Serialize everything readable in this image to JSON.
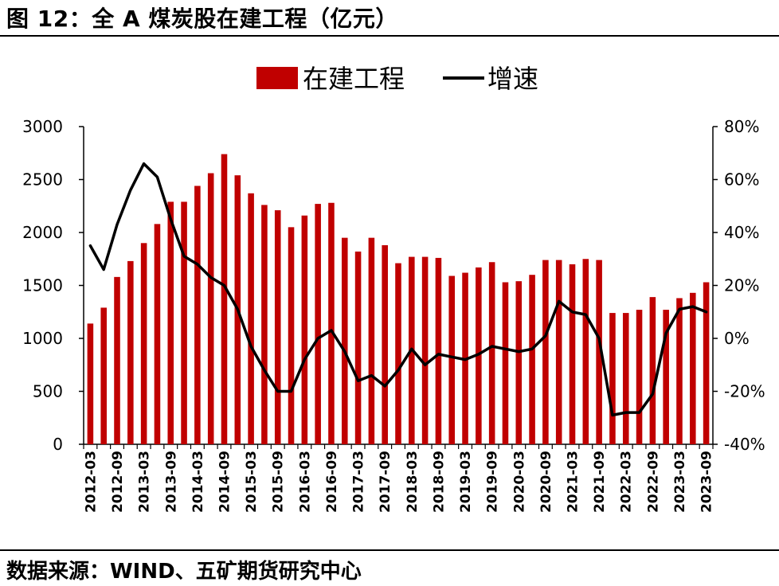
{
  "header": {
    "title": "图 12：全 A 煤炭股在建工程（亿元）"
  },
  "footer": {
    "source": "数据来源：WIND、五矿期货研究中心"
  },
  "colors": {
    "bar": "#c00000",
    "line": "#000000"
  },
  "chart_data": {
    "type": "bar+line",
    "legend_position": "top-center",
    "grid": false,
    "y_left": {
      "ylim": [
        0,
        3000
      ],
      "ticks": [
        "0",
        "500",
        "1000",
        "1500",
        "2000",
        "2500",
        "3000"
      ]
    },
    "y_right": {
      "ylim": [
        -40,
        80
      ],
      "ticks": [
        "-40%",
        "-20%",
        "0%",
        "20%",
        "40%",
        "60%",
        "80%"
      ]
    },
    "x_tick_labels": [
      "2012-03",
      "2012-09",
      "2013-03",
      "2013-09",
      "2014-03",
      "2014-09",
      "2015-03",
      "2015-09",
      "2016-03",
      "2016-09",
      "2017-03",
      "2017-09",
      "2018-03",
      "2018-09",
      "2019-03",
      "2019-09",
      "2020-03",
      "2020-09",
      "2021-03",
      "2021-09",
      "2022-03",
      "2022-09",
      "2023-03",
      "2023-09"
    ],
    "categories": [
      "2012-03",
      "2012-06",
      "2012-09",
      "2012-12",
      "2013-03",
      "2013-06",
      "2013-09",
      "2013-12",
      "2014-03",
      "2014-06",
      "2014-09",
      "2014-12",
      "2015-03",
      "2015-06",
      "2015-09",
      "2015-12",
      "2016-03",
      "2016-06",
      "2016-09",
      "2016-12",
      "2017-03",
      "2017-06",
      "2017-09",
      "2017-12",
      "2018-03",
      "2018-06",
      "2018-09",
      "2018-12",
      "2019-03",
      "2019-06",
      "2019-09",
      "2019-12",
      "2020-03",
      "2020-06",
      "2020-09",
      "2020-12",
      "2021-03",
      "2021-06",
      "2021-09",
      "2021-12",
      "2022-03",
      "2022-06",
      "2022-09",
      "2022-12",
      "2023-03",
      "2023-06",
      "2023-09"
    ],
    "series": [
      {
        "name": "在建工程",
        "type": "bar",
        "axis": "left",
        "values": [
          1140,
          1290,
          1580,
          1730,
          1900,
          2080,
          2290,
          2290,
          2440,
          2560,
          2740,
          2540,
          2370,
          2260,
          2210,
          2050,
          2160,
          2270,
          2280,
          1950,
          1820,
          1950,
          1880,
          1710,
          1770,
          1770,
          1760,
          1590,
          1620,
          1670,
          1720,
          1530,
          1540,
          1600,
          1740,
          1740,
          1700,
          1750,
          1740,
          1240,
          1240,
          1270,
          1390,
          1270,
          1380,
          1430,
          1530
        ]
      },
      {
        "name": "增速",
        "type": "line",
        "axis": "right",
        "values": [
          35,
          26,
          43,
          56,
          66,
          61,
          45,
          31,
          28,
          23,
          20,
          11,
          -3,
          -12,
          -20,
          -20,
          -8,
          0,
          3,
          -5,
          -16,
          -14,
          -18,
          -12,
          -4,
          -10,
          -6,
          -7,
          -8,
          -6,
          -3,
          -4,
          -5,
          -4,
          1,
          14,
          10,
          9,
          0,
          -29,
          -28,
          -28,
          -21,
          2,
          11,
          12,
          10
        ]
      }
    ]
  }
}
